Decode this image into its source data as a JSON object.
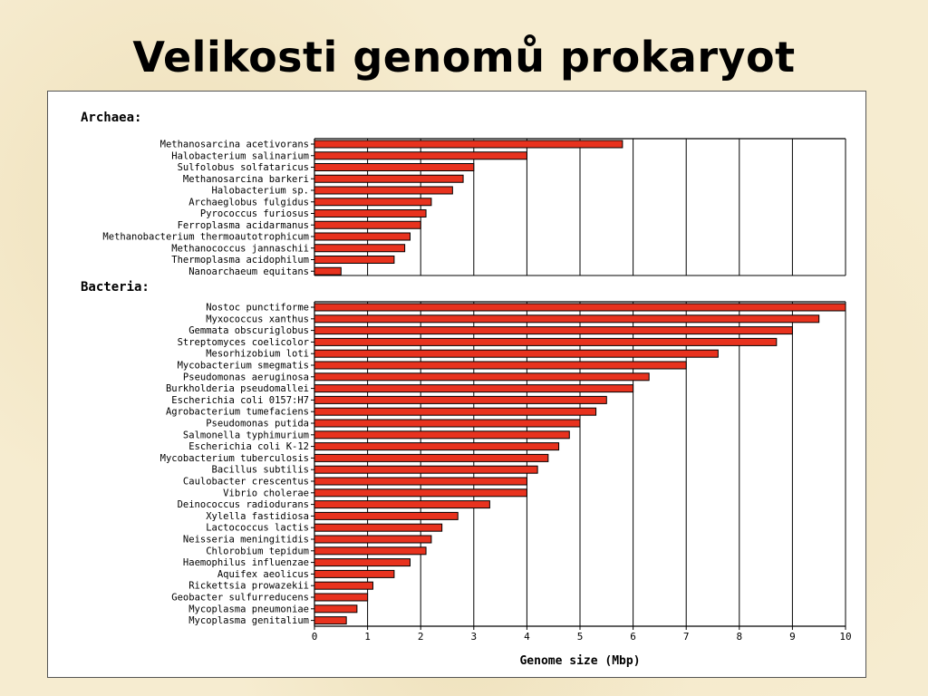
{
  "slide": {
    "title": "Velikosti genomů prokaryot"
  },
  "chart_data": {
    "type": "bar",
    "orientation": "horizontal",
    "xlabel": "Genome size (Mbp)",
    "xlim": [
      0,
      10
    ],
    "xticks": [
      0,
      1,
      2,
      3,
      4,
      5,
      6,
      7,
      8,
      9,
      10
    ],
    "grid": true,
    "bar_color": "#e8321e",
    "groups": [
      {
        "name": "Archaea:",
        "categories": [
          "Methanosarcina acetivorans",
          "Halobacterium salinarium",
          "Sulfolobus solfataricus",
          "Methanosarcina barkeri",
          "Halobacterium sp.",
          "Archaeglobus fulgidus",
          "Pyrococcus furiosus",
          "Ferroplasma acidarmanus",
          "Methanobacterium thermoautotrophicum",
          "Methanococcus jannaschii",
          "Thermoplasma acidophilum",
          "Nanoarchaeum equitans"
        ],
        "values": [
          5.8,
          4.0,
          3.0,
          2.8,
          2.6,
          2.2,
          2.1,
          2.0,
          1.8,
          1.7,
          1.5,
          0.5
        ]
      },
      {
        "name": "Bacteria:",
        "categories": [
          "Nostoc punctiforme",
          "Myxococcus xanthus",
          "Gemmata obscuriglobus",
          "Streptomyces coelicolor",
          "Mesorhizobium loti",
          "Mycobacterium smegmatis",
          "Pseudomonas aeruginosa",
          "Burkholderia pseudomallei",
          "Escherichia coli 0157:H7",
          "Agrobacterium tumefaciens",
          "Pseudomonas putida",
          "Salmonella typhimurium",
          "Escherichia coli K-12",
          "Mycobacterium tuberculosis",
          "Bacillus subtilis",
          "Caulobacter crescentus",
          "Vibrio cholerae",
          "Deinococcus radiodurans",
          "Xylella fastidiosa",
          "Lactococcus lactis",
          "Neisseria meningitidis",
          "Chlorobium tepidum",
          "Haemophilus influenzae",
          "Aquifex aeolicus",
          "Rickettsia prowazekii",
          "Geobacter sulfurreducens",
          "Mycoplasma pneumoniae",
          "Mycoplasma genitalium"
        ],
        "values": [
          10.0,
          9.5,
          9.0,
          8.7,
          7.6,
          7.0,
          6.3,
          6.0,
          5.5,
          5.3,
          5.0,
          4.8,
          4.6,
          4.4,
          4.2,
          4.0,
          4.0,
          3.3,
          2.7,
          2.4,
          2.2,
          2.1,
          1.8,
          1.5,
          1.1,
          1.0,
          0.8,
          0.6
        ]
      }
    ]
  }
}
